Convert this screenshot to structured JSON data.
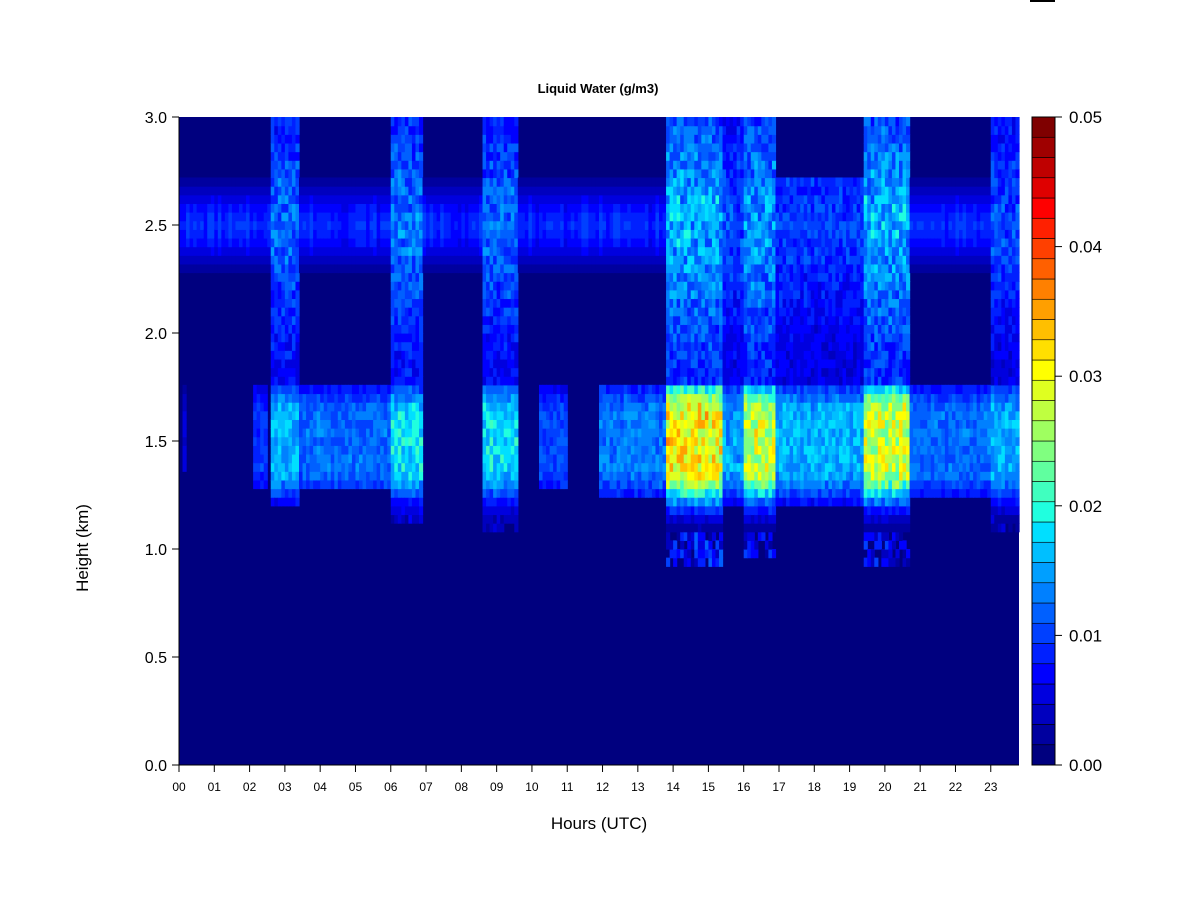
{
  "chart_data": {
    "type": "heatmap",
    "title": "Liquid Water (g/m3)",
    "xlabel": "Hours (UTC)",
    "ylabel": "Height (km)",
    "xlim": [
      0,
      23.8
    ],
    "ylim": [
      0.0,
      3.0
    ],
    "x_ticks": [
      "00",
      "01",
      "02",
      "03",
      "04",
      "05",
      "06",
      "07",
      "08",
      "09",
      "10",
      "11",
      "12",
      "13",
      "14",
      "15",
      "16",
      "17",
      "18",
      "19",
      "20",
      "21",
      "22",
      "23"
    ],
    "y_ticks": [
      "0.0",
      "0.5",
      "1.0",
      "1.5",
      "2.0",
      "2.5",
      "3.0"
    ],
    "colorbar": {
      "min": 0.0,
      "max": 0.05,
      "ticks": [
        "0.00",
        "0.01",
        "0.02",
        "0.03",
        "0.04",
        "0.05"
      ],
      "levels": 25,
      "colors": [
        "#00007f",
        "#00009f",
        "#0000bf",
        "#0000df",
        "#0000ff",
        "#0020ff",
        "#0040ff",
        "#0060ff",
        "#0080ff",
        "#009fff",
        "#00bfff",
        "#00dfff",
        "#20ffdf",
        "#40ffbf",
        "#60ff9f",
        "#80ff80",
        "#9fff60",
        "#bfff40",
        "#dfff20",
        "#ffff00",
        "#ffdf00",
        "#ffbf00",
        "#ff9f00",
        "#ff8000",
        "#ff6000",
        "#ff4000",
        "#ff2000",
        "#ff0000",
        "#df0000",
        "#bf0000",
        "#9f0000",
        "#7f0000"
      ]
    },
    "background_value": 0.0,
    "upper_layer": {
      "center_km": 2.5,
      "thickness_km": 0.45,
      "peak_value": 0.009
    },
    "lower_layer": {
      "center_km": 1.5,
      "thickness_km": 0.38
    },
    "cloud_columns": [
      {
        "start_h": 0.1,
        "end_h": 0.2,
        "lower_peak": 0.006,
        "upper_peak": 0.0,
        "bottom_km": 1.35,
        "top_km": 1.65
      },
      {
        "start_h": 2.1,
        "end_h": 2.5,
        "lower_peak": 0.01,
        "upper_peak": 0.0,
        "bottom_km": 1.3,
        "top_km": 1.7
      },
      {
        "start_h": 2.6,
        "end_h": 3.4,
        "lower_peak": 0.017,
        "upper_peak": 0.014,
        "bottom_km": 1.22,
        "top_km": 3.0
      },
      {
        "start_h": 3.4,
        "end_h": 6.0,
        "lower_peak": 0.013,
        "upper_peak": 0.0,
        "bottom_km": 1.3,
        "top_km": 1.68
      },
      {
        "start_h": 6.0,
        "end_h": 6.9,
        "lower_peak": 0.019,
        "upper_peak": 0.015,
        "bottom_km": 1.12,
        "top_km": 3.0
      },
      {
        "start_h": 8.6,
        "end_h": 9.6,
        "lower_peak": 0.019,
        "upper_peak": 0.014,
        "bottom_km": 1.08,
        "top_km": 3.0
      },
      {
        "start_h": 10.2,
        "end_h": 11.0,
        "lower_peak": 0.011,
        "upper_peak": 0.0,
        "bottom_km": 1.28,
        "top_km": 1.65
      },
      {
        "start_h": 11.9,
        "end_h": 13.8,
        "lower_peak": 0.014,
        "upper_peak": 0.01,
        "bottom_km": 1.25,
        "top_km": 1.68
      },
      {
        "start_h": 13.8,
        "end_h": 15.4,
        "lower_peak": 0.033,
        "upper_peak": 0.018,
        "bottom_km": 0.92,
        "top_km": 3.0
      },
      {
        "start_h": 15.4,
        "end_h": 16.0,
        "lower_peak": 0.016,
        "upper_peak": 0.012,
        "bottom_km": 1.2,
        "top_km": 3.0
      },
      {
        "start_h": 16.0,
        "end_h": 16.9,
        "lower_peak": 0.03,
        "upper_peak": 0.017,
        "bottom_km": 0.95,
        "top_km": 3.0
      },
      {
        "start_h": 16.9,
        "end_h": 19.4,
        "lower_peak": 0.017,
        "upper_peak": 0.011,
        "bottom_km": 1.22,
        "top_km": 2.7
      },
      {
        "start_h": 19.4,
        "end_h": 20.7,
        "lower_peak": 0.03,
        "upper_peak": 0.018,
        "bottom_km": 0.92,
        "top_km": 3.0
      },
      {
        "start_h": 20.7,
        "end_h": 23.0,
        "lower_peak": 0.013,
        "upper_peak": 0.0,
        "bottom_km": 1.25,
        "top_km": 1.7
      },
      {
        "start_h": 23.0,
        "end_h": 23.8,
        "lower_peak": 0.017,
        "upper_peak": 0.012,
        "bottom_km": 1.1,
        "top_km": 3.0
      }
    ]
  }
}
